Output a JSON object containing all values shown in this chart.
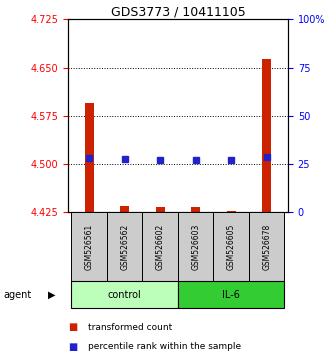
{
  "title": "GDS3773 / 10411105",
  "samples": [
    "GSM526561",
    "GSM526562",
    "GSM526602",
    "GSM526603",
    "GSM526605",
    "GSM526678"
  ],
  "red_values": [
    4.595,
    4.435,
    4.433,
    4.434,
    4.427,
    4.663
  ],
  "red_base": 4.425,
  "blue_values": [
    28.0,
    27.5,
    27.0,
    27.0,
    27.0,
    28.5
  ],
  "ylim_left": [
    4.425,
    4.725
  ],
  "ylim_right": [
    0,
    100
  ],
  "yticks_left": [
    4.425,
    4.5,
    4.575,
    4.65,
    4.725
  ],
  "yticks_right": [
    0,
    25,
    50,
    75,
    100
  ],
  "ytick_labels_right": [
    "0",
    "25",
    "50",
    "75",
    "100%"
  ],
  "grid_values": [
    4.5,
    4.575,
    4.65
  ],
  "control_label": "control",
  "il6_label": "IL-6",
  "agent_label": "agent",
  "legend_red": "transformed count",
  "legend_blue": "percentile rank within the sample",
  "bar_color": "#cc2200",
  "dot_color": "#2222cc",
  "control_bg": "#bbffbb",
  "il6_bg": "#33cc33",
  "sample_bg": "#cccccc",
  "bar_width": 0.25,
  "title_fontsize": 9,
  "tick_fontsize": 7,
  "sample_fontsize": 5.5,
  "label_fontsize": 7,
  "legend_fontsize": 6.5
}
